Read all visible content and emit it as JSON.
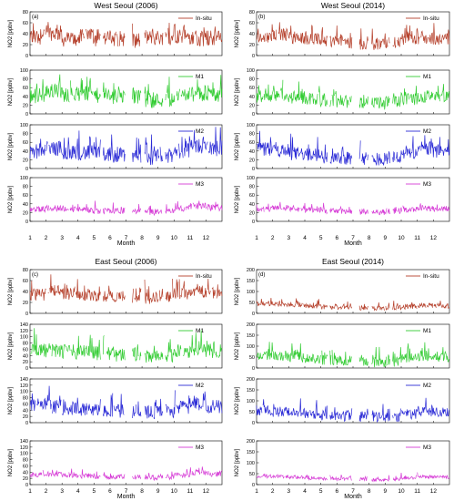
{
  "chart_data": [
    {
      "id": "ws2006",
      "type": "line",
      "title": "West Seoul (2006)",
      "panel_label": "(a)",
      "xlabel": "Month",
      "ylabel": "NO2 [ppbv]",
      "x_ticks": [
        1,
        2,
        3,
        4,
        5,
        6,
        7,
        8,
        9,
        10,
        11,
        12
      ],
      "grid": false,
      "series": [
        {
          "name": "In-situ",
          "color": "#b5402b",
          "ylim": [
            0,
            80
          ],
          "y_ticks": [
            0,
            20,
            40,
            60,
            80
          ],
          "level": [
            34,
            41,
            30,
            34,
            31,
            31,
            28,
            33,
            33,
            36,
            30,
            32
          ],
          "amplitude": 18
        },
        {
          "name": "M1",
          "color": "#33cc33",
          "ylim": [
            0,
            100
          ],
          "y_ticks": [
            0,
            20,
            40,
            60,
            80,
            100
          ],
          "level": [
            42,
            52,
            44,
            44,
            42,
            40,
            37,
            31,
            33,
            42,
            45,
            44
          ],
          "amplitude": 22
        },
        {
          "name": "M2",
          "color": "#2b2bd6",
          "ylim": [
            0,
            100
          ],
          "y_ticks": [
            0,
            20,
            40,
            60,
            80,
            100
          ],
          "level": [
            40,
            46,
            38,
            36,
            33,
            30,
            28,
            25,
            28,
            40,
            52,
            46
          ],
          "amplitude": 22
        },
        {
          "name": "M3",
          "color": "#d63cd6",
          "ylim": [
            0,
            100
          ],
          "y_ticks": [
            0,
            20,
            40,
            60,
            80,
            100
          ],
          "level": [
            27,
            30,
            27,
            26,
            24,
            24,
            22,
            21,
            23,
            30,
            35,
            31
          ],
          "amplitude": 9
        }
      ]
    },
    {
      "id": "ws2014",
      "type": "line",
      "title": "West Seoul (2014)",
      "panel_label": "(b)",
      "xlabel": "Month",
      "ylabel": "NO2 [ppbv]",
      "x_ticks": [
        1,
        2,
        3,
        4,
        5,
        6,
        7,
        8,
        9,
        10,
        11,
        12
      ],
      "grid": false,
      "series": [
        {
          "name": "In-situ",
          "color": "#b5402b",
          "ylim": [
            0,
            80
          ],
          "y_ticks": [
            0,
            20,
            40,
            60,
            80
          ],
          "level": [
            32,
            38,
            33,
            30,
            27,
            24,
            22,
            21,
            23,
            30,
            32,
            31
          ],
          "amplitude": 14
        },
        {
          "name": "M1",
          "color": "#33cc33",
          "ylim": [
            0,
            100
          ],
          "y_ticks": [
            0,
            20,
            40,
            60,
            80,
            100
          ],
          "level": [
            40,
            42,
            38,
            34,
            30,
            28,
            26,
            24,
            28,
            34,
            40,
            38
          ],
          "amplitude": 18
        },
        {
          "name": "M2",
          "color": "#2b2bd6",
          "ylim": [
            0,
            100
          ],
          "y_ticks": [
            0,
            20,
            40,
            60,
            80,
            100
          ],
          "level": [
            44,
            40,
            34,
            30,
            27,
            25,
            23,
            22,
            26,
            36,
            46,
            40
          ],
          "amplitude": 20
        },
        {
          "name": "M3",
          "color": "#d63cd6",
          "ylim": [
            0,
            100
          ],
          "y_ticks": [
            0,
            20,
            40,
            60,
            80,
            100
          ],
          "level": [
            28,
            30,
            28,
            26,
            24,
            23,
            21,
            21,
            23,
            27,
            30,
            29
          ],
          "amplitude": 8
        }
      ]
    },
    {
      "id": "es2006",
      "type": "line",
      "title": "East Seoul (2006)",
      "panel_label": "(c)",
      "xlabel": "Month",
      "ylabel": "NO2 [ppbv]",
      "x_ticks": [
        1,
        2,
        3,
        4,
        5,
        6,
        7,
        8,
        9,
        10,
        11,
        12
      ],
      "grid": false,
      "series": [
        {
          "name": "In-situ",
          "color": "#b5402b",
          "ylim": [
            0,
            80
          ],
          "y_ticks": [
            0,
            20,
            40,
            60,
            80
          ],
          "level": [
            34,
            42,
            36,
            34,
            30,
            30,
            28,
            28,
            32,
            36,
            40,
            38
          ],
          "amplitude": 14
        },
        {
          "name": "M1",
          "color": "#33cc33",
          "ylim": [
            0,
            140
          ],
          "y_ticks": [
            0,
            20,
            40,
            60,
            80,
            100,
            120,
            140
          ],
          "level": [
            58,
            56,
            52,
            50,
            46,
            42,
            40,
            34,
            40,
            52,
            64,
            56
          ],
          "amplitude": 30
        },
        {
          "name": "M2",
          "color": "#2b2bd6",
          "ylim": [
            0,
            140
          ],
          "y_ticks": [
            0,
            20,
            40,
            60,
            80,
            100,
            120,
            140
          ],
          "level": [
            56,
            52,
            46,
            42,
            40,
            38,
            36,
            32,
            36,
            48,
            60,
            52
          ],
          "amplitude": 28
        },
        {
          "name": "M3",
          "color": "#d63cd6",
          "ylim": [
            0,
            140
          ],
          "y_ticks": [
            0,
            20,
            40,
            60,
            80,
            100,
            120,
            140
          ],
          "level": [
            32,
            34,
            30,
            28,
            26,
            25,
            23,
            22,
            24,
            30,
            38,
            34
          ],
          "amplitude": 10
        }
      ]
    },
    {
      "id": "es2014",
      "type": "line",
      "title": "East Seoul (2014)",
      "panel_label": "(d)",
      "xlabel": "Month",
      "ylabel": "NO2 [ppbv]",
      "x_ticks": [
        1,
        2,
        3,
        4,
        5,
        6,
        7,
        8,
        9,
        10,
        11,
        12
      ],
      "grid": false,
      "series": [
        {
          "name": "In-situ",
          "color": "#b5402b",
          "ylim": [
            0,
            200
          ],
          "y_ticks": [
            0,
            50,
            100,
            150,
            200
          ],
          "level": [
            44,
            42,
            38,
            34,
            30,
            28,
            26,
            24,
            26,
            30,
            36,
            34
          ],
          "amplitude": 14
        },
        {
          "name": "M1",
          "color": "#33cc33",
          "ylim": [
            0,
            200
          ],
          "y_ticks": [
            0,
            50,
            100,
            150,
            200
          ],
          "level": [
            60,
            56,
            50,
            44,
            38,
            34,
            30,
            26,
            30,
            44,
            56,
            52
          ],
          "amplitude": 30
        },
        {
          "name": "M2",
          "color": "#2b2bd6",
          "ylim": [
            0,
            200
          ],
          "y_ticks": [
            0,
            50,
            100,
            150,
            200
          ],
          "level": [
            56,
            50,
            44,
            40,
            34,
            30,
            28,
            24,
            28,
            40,
            52,
            46
          ],
          "amplitude": 30
        },
        {
          "name": "M3",
          "color": "#d63cd6",
          "ylim": [
            0,
            200
          ],
          "y_ticks": [
            0,
            50,
            100,
            150,
            200
          ],
          "level": [
            38,
            38,
            34,
            30,
            28,
            26,
            24,
            22,
            24,
            30,
            36,
            34
          ],
          "amplitude": 10
        }
      ]
    }
  ]
}
